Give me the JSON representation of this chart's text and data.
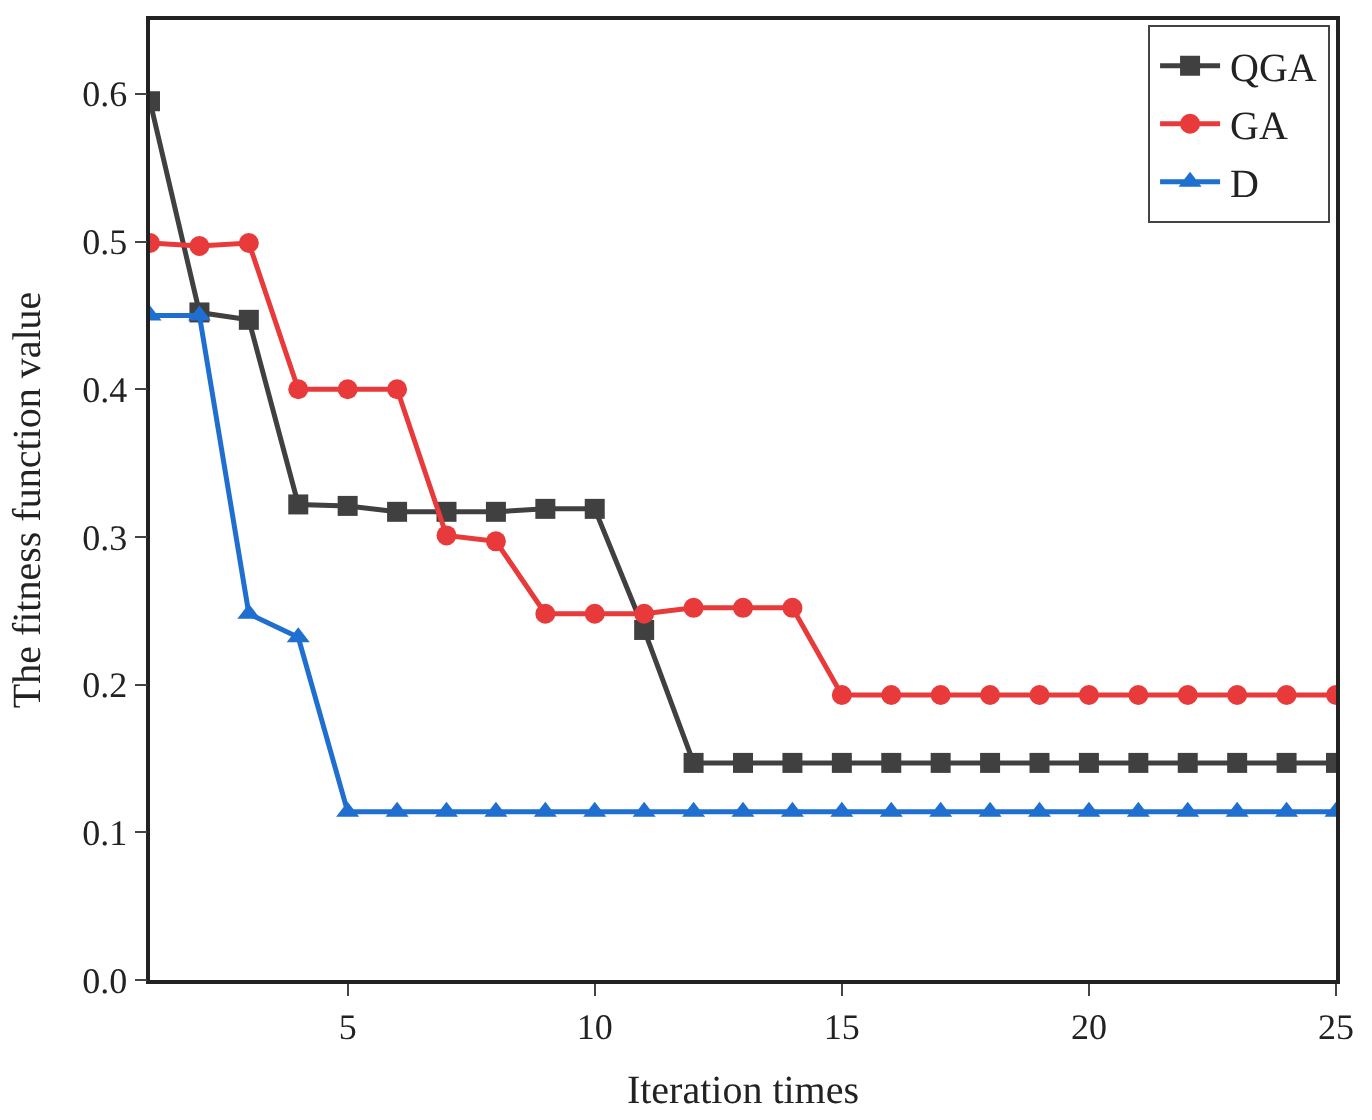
{
  "chart_data": {
    "type": "line",
    "xlabel": "Iteration times",
    "ylabel": "The fitness function value",
    "x": [
      1,
      2,
      3,
      4,
      5,
      6,
      7,
      8,
      9,
      10,
      11,
      12,
      13,
      14,
      15,
      16,
      17,
      18,
      19,
      20,
      21,
      22,
      23,
      24,
      25
    ],
    "series": [
      {
        "name": "QGA",
        "color": "#404040",
        "marker": "square",
        "values": [
          0.595,
          0.452,
          0.447,
          0.322,
          0.321,
          0.317,
          0.317,
          0.317,
          0.319,
          0.319,
          0.237,
          0.147,
          0.147,
          0.147,
          0.147,
          0.147,
          0.147,
          0.147,
          0.147,
          0.147,
          0.147,
          0.147,
          0.147,
          0.147,
          0.147
        ]
      },
      {
        "name": "GA",
        "color": "#e83a3a",
        "marker": "circle",
        "values": [
          0.499,
          0.497,
          0.499,
          0.4,
          0.4,
          0.4,
          0.301,
          0.297,
          0.248,
          0.248,
          0.248,
          0.252,
          0.252,
          0.252,
          0.193,
          0.193,
          0.193,
          0.193,
          0.193,
          0.193,
          0.193,
          0.193,
          0.193,
          0.193,
          0.193
        ]
      },
      {
        "name": "D",
        "color": "#1f6fd1",
        "marker": "triangle",
        "values": [
          0.45,
          0.45,
          0.248,
          0.232,
          0.114,
          0.114,
          0.114,
          0.114,
          0.114,
          0.114,
          0.114,
          0.114,
          0.114,
          0.114,
          0.114,
          0.114,
          0.114,
          0.114,
          0.114,
          0.114,
          0.114,
          0.114,
          0.114,
          0.114,
          0.114
        ]
      }
    ],
    "xlim": [
      1,
      25
    ],
    "xticks": [
      5,
      10,
      15,
      20,
      25
    ],
    "ylim": [
      0,
      0.65
    ],
    "yticks": [
      "0.0",
      0.1,
      0.2,
      0.3,
      0.4,
      0.5,
      0.6
    ],
    "legend": "top right"
  }
}
